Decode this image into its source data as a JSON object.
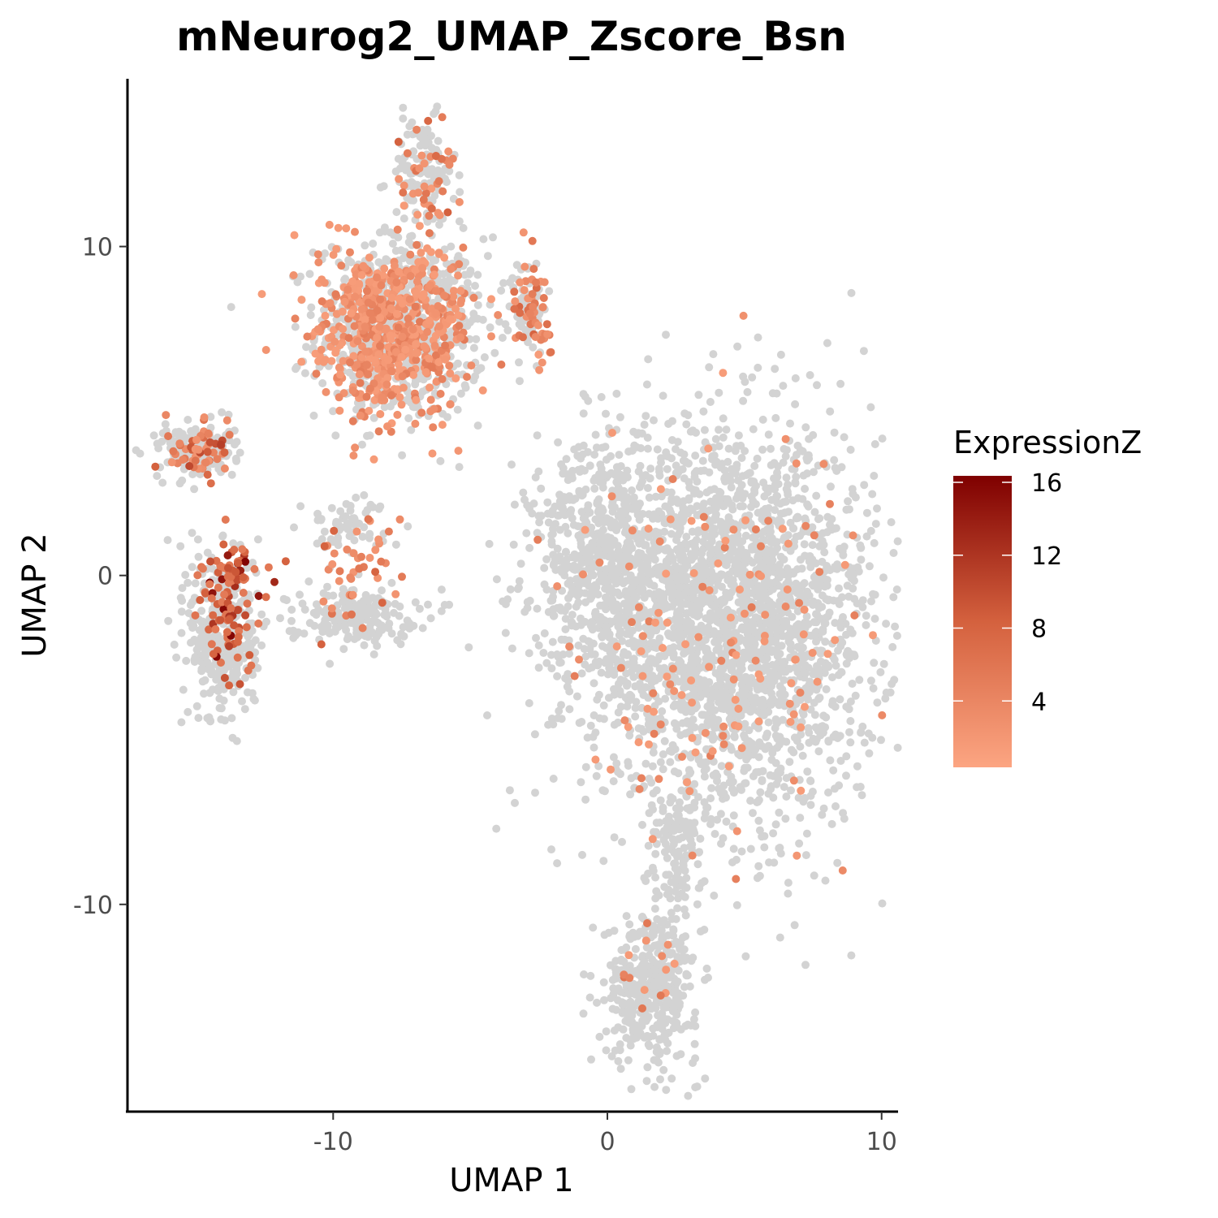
{
  "chart_data": {
    "type": "scatter",
    "title": "mNeurog2_UMAP_Zscore_Bsn",
    "xlabel": "UMAP 1",
    "ylabel": "UMAP 2",
    "xlim": [
      -17.5,
      10.6
    ],
    "ylim": [
      -16.3,
      15.1
    ],
    "x_ticks": [
      -10,
      0,
      10
    ],
    "x_tick_labels": [
      "-10",
      "0",
      "10"
    ],
    "y_ticks": [
      10,
      0,
      -10
    ],
    "y_tick_labels": [
      "10",
      "0",
      "-10"
    ],
    "grid": false,
    "legend": {
      "title": "ExpressionZ",
      "position": "right",
      "range": [
        0,
        16
      ],
      "ticks": [
        16,
        12,
        8,
        4
      ],
      "tick_labels": [
        "16",
        "12",
        "8",
        "4"
      ],
      "colors": {
        "low": "#fca582",
        "mid": "#d4613e",
        "high": "#7f0000"
      }
    },
    "background_color": "#d3d3d3",
    "background_clusters": [
      {
        "name": "top-left-arm",
        "cx": -7.5,
        "cy": 7.5,
        "sx": 2.2,
        "sy": 2.0,
        "n": 700
      },
      {
        "name": "top-spike",
        "cx": -6.8,
        "cy": 12.2,
        "sx": 0.9,
        "sy": 1.2,
        "n": 120
      },
      {
        "name": "right-mid",
        "cx": -2.9,
        "cy": 8.2,
        "sx": 0.5,
        "sy": 1.0,
        "n": 70
      },
      {
        "name": "big-right",
        "cx": 4.5,
        "cy": -1.5,
        "sx": 3.8,
        "sy": 4.2,
        "n": 2600
      },
      {
        "name": "big-left-lobe",
        "cx": 0.0,
        "cy": 0.5,
        "sx": 2.0,
        "sy": 2.6,
        "n": 600
      },
      {
        "name": "bottom-tail",
        "cx": 1.6,
        "cy": -12.5,
        "sx": 1.2,
        "sy": 1.6,
        "n": 420
      },
      {
        "name": "bottom-neck",
        "cx": 2.5,
        "cy": -8.5,
        "sx": 0.7,
        "sy": 1.6,
        "n": 110
      },
      {
        "name": "left-island-top",
        "cx": -15.0,
        "cy": 3.8,
        "sx": 1.0,
        "sy": 0.6,
        "n": 160
      },
      {
        "name": "left-island-bottom",
        "cx": -14.0,
        "cy": -1.8,
        "sx": 0.9,
        "sy": 1.9,
        "n": 360
      },
      {
        "name": "middle-island",
        "cx": -9.3,
        "cy": -1.2,
        "sx": 1.7,
        "sy": 0.6,
        "n": 190
      },
      {
        "name": "middle-island-upper",
        "cx": -9.5,
        "cy": 1.5,
        "sx": 1.2,
        "sy": 0.6,
        "n": 60
      }
    ],
    "expressed_clusters": [
      {
        "name": "top-left-arm",
        "cx": -7.8,
        "cy": 7.4,
        "sx": 2.0,
        "sy": 1.8,
        "n": 650,
        "zmin": 1,
        "zmax": 5
      },
      {
        "name": "top-spike",
        "cx": -6.5,
        "cy": 12.0,
        "sx": 0.9,
        "sy": 1.2,
        "n": 40,
        "zmin": 2,
        "zmax": 8
      },
      {
        "name": "right-mid",
        "cx": -2.7,
        "cy": 8.0,
        "sx": 0.6,
        "sy": 1.2,
        "n": 50,
        "zmin": 2,
        "zmax": 8
      },
      {
        "name": "big-right",
        "cx": 4.5,
        "cy": -1.8,
        "sx": 3.5,
        "sy": 4.2,
        "n": 150,
        "zmin": 1,
        "zmax": 5
      },
      {
        "name": "bottom-tail",
        "cx": 1.4,
        "cy": -12.3,
        "sx": 1.1,
        "sy": 1.5,
        "n": 14,
        "zmin": 1,
        "zmax": 6
      },
      {
        "name": "left-island-top",
        "cx": -15.0,
        "cy": 3.9,
        "sx": 1.0,
        "sy": 0.6,
        "n": 60,
        "zmin": 2,
        "zmax": 12
      },
      {
        "name": "left-island-bottom",
        "cx": -13.8,
        "cy": -0.9,
        "sx": 0.8,
        "sy": 1.5,
        "n": 110,
        "zmin": 5,
        "zmax": 16
      },
      {
        "name": "middle-island",
        "cx": -9.2,
        "cy": 0.0,
        "sx": 1.2,
        "sy": 1.3,
        "n": 45,
        "zmin": 2,
        "zmax": 8
      }
    ]
  }
}
